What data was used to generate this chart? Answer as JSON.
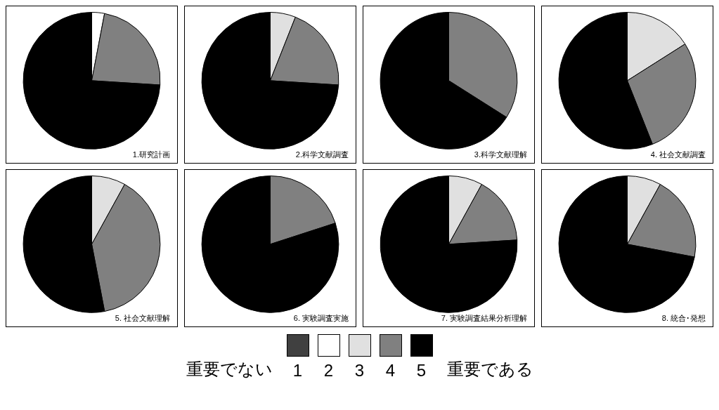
{
  "chart_data": [
    {
      "type": "pie",
      "title": "1.研究計画",
      "categories": [
        "1",
        "2",
        "3",
        "4",
        "5"
      ],
      "values": [
        0,
        3,
        0,
        23,
        74
      ],
      "colors": [
        "#404040",
        "#ffffff",
        "#e0e0e0",
        "#808080",
        "#000000"
      ],
      "legend": "bottom",
      "annotations": [
        "重要でない",
        "重要である"
      ]
    },
    {
      "type": "pie",
      "title": "2.科学文献調査",
      "values": [
        0,
        0,
        6,
        20,
        74
      ],
      "colors": [
        "#404040",
        "#ffffff",
        "#e0e0e0",
        "#808080",
        "#000000"
      ]
    },
    {
      "type": "pie",
      "title": "3.科学文献理解",
      "values": [
        0,
        0,
        0,
        34,
        66
      ],
      "colors": [
        "#404040",
        "#ffffff",
        "#e0e0e0",
        "#808080",
        "#000000"
      ]
    },
    {
      "type": "pie",
      "title": "4. 社会文献調査",
      "values": [
        0,
        0,
        16,
        28,
        56
      ],
      "colors": [
        "#404040",
        "#ffffff",
        "#e0e0e0",
        "#808080",
        "#000000"
      ]
    },
    {
      "type": "pie",
      "title": "5. 社会文献理解",
      "values": [
        0,
        0,
        8,
        39,
        53
      ],
      "colors": [
        "#404040",
        "#ffffff",
        "#e0e0e0",
        "#808080",
        "#000000"
      ]
    },
    {
      "type": "pie",
      "title": "6. 実験調査実施",
      "values": [
        0,
        0,
        0,
        20,
        80
      ],
      "colors": [
        "#404040",
        "#ffffff",
        "#e0e0e0",
        "#808080",
        "#000000"
      ]
    },
    {
      "type": "pie",
      "title": "7. 実験調査結果分析理解",
      "values": [
        0,
        0,
        8,
        16,
        76
      ],
      "colors": [
        "#404040",
        "#ffffff",
        "#e0e0e0",
        "#808080",
        "#000000"
      ]
    },
    {
      "type": "pie",
      "title": "8. 統合･発想",
      "values": [
        0,
        0,
        8,
        20,
        72
      ],
      "colors": [
        "#404040",
        "#ffffff",
        "#e0e0e0",
        "#808080",
        "#000000"
      ]
    }
  ]
}
